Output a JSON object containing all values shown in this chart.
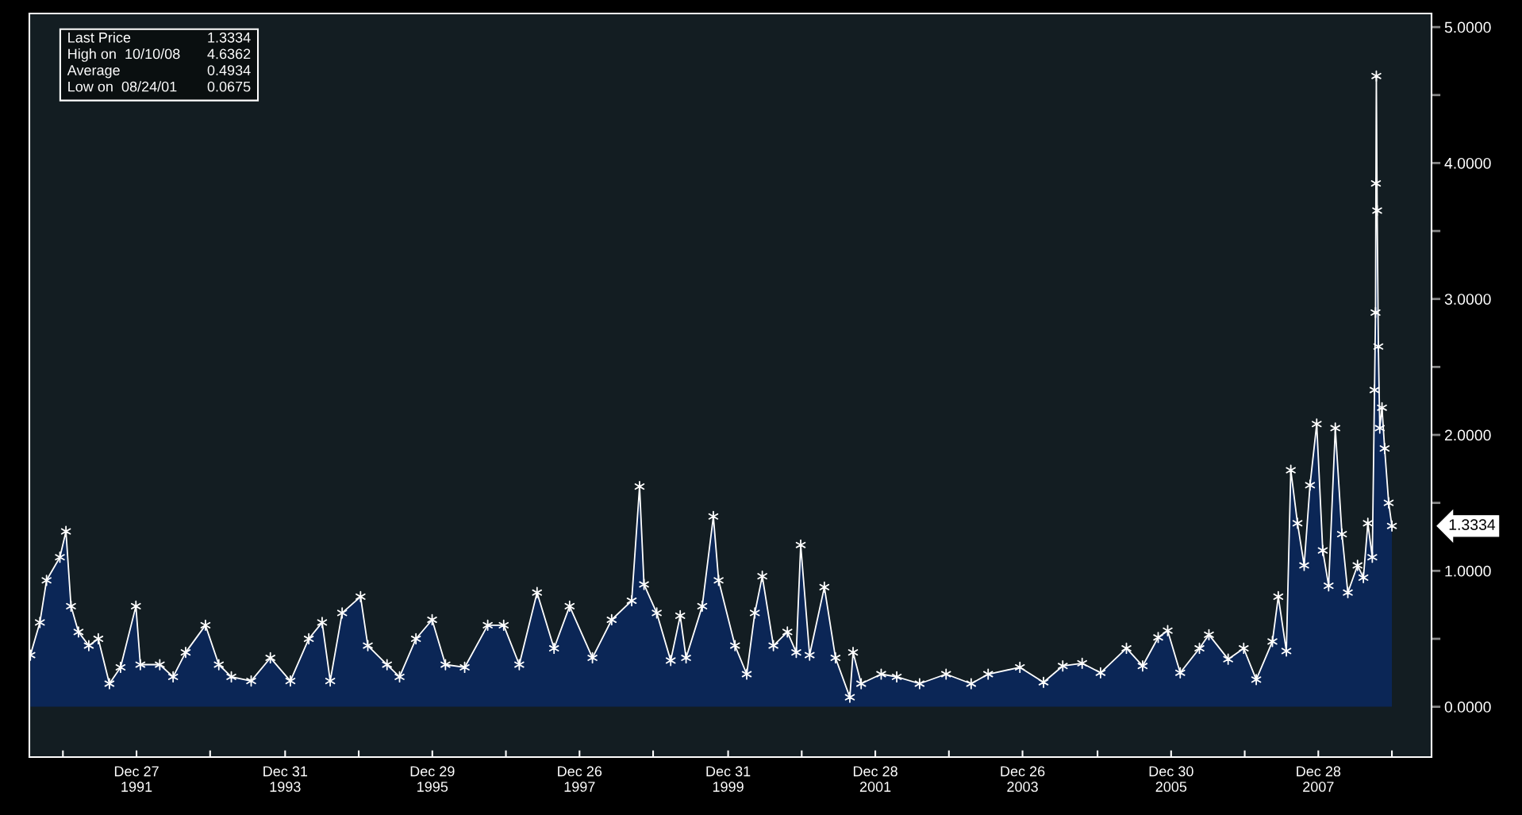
{
  "chart_data": {
    "type": "area",
    "x": [
      "1990-07-20",
      "1990-09-05",
      "1990-10-08",
      "1990-12-13",
      "1991-01-12",
      "1991-02-06",
      "1991-03-15",
      "1991-05-05",
      "1991-06-21",
      "1991-08-15",
      "1991-10-09",
      "1991-12-24",
      "1992-01-15",
      "1992-04-20",
      "1992-06-25",
      "1992-08-26",
      "1992-12-02",
      "1993-02-06",
      "1993-04-09",
      "1993-07-16",
      "1993-10-19",
      "1994-01-26",
      "1994-04-27",
      "1994-07-02",
      "1994-08-11",
      "1994-10-09",
      "1995-01-08",
      "1995-02-13",
      "1995-05-19",
      "1995-07-20",
      "1995-10-09",
      "1995-12-28",
      "1996-03-03",
      "1996-06-06",
      "1996-09-28",
      "1996-12-16",
      "1997-03-03",
      "1997-05-30",
      "1997-08-22",
      "1997-11-07",
      "1998-02-28",
      "1998-06-03",
      "1998-09-10",
      "1998-10-19",
      "1998-11-10",
      "1999-01-12",
      "1999-03-22",
      "1999-05-08",
      "1999-06-06",
      "1999-08-25",
      "1999-10-19",
      "1999-11-14",
      "2000-02-03",
      "2000-04-01",
      "2000-05-11",
      "2000-06-17",
      "2000-08-11",
      "2000-10-19",
      "2000-12-02",
      "2000-12-24",
      "2001-02-06",
      "2001-04-20",
      "2001-06-14",
      "2001-08-24",
      "2001-09-09",
      "2001-10-19",
      "2002-01-26",
      "2002-04-13",
      "2002-08-04",
      "2002-12-13",
      "2003-04-16",
      "2003-07-09",
      "2003-12-13",
      "2004-04-08",
      "2004-07-12",
      "2004-10-16",
      "2005-01-15",
      "2005-05-23",
      "2005-08-11",
      "2005-10-27",
      "2005-12-13",
      "2006-02-13",
      "2006-05-19",
      "2006-07-05",
      "2006-10-08",
      "2006-12-24",
      "2007-02-24",
      "2007-05-15",
      "2007-06-13",
      "2007-07-23",
      "2007-08-14",
      "2007-09-16",
      "2007-10-19",
      "2007-11-17",
      "2007-12-20",
      "2008-01-19",
      "2008-02-17",
      "2008-03-21",
      "2008-04-23",
      "2008-05-22",
      "2008-07-09",
      "2008-08-07",
      "2008-08-29",
      "2008-09-20",
      "2008-10-01",
      "2008-10-06",
      "2008-10-08",
      "2008-10-10",
      "2008-10-14",
      "2008-10-20",
      "2008-10-27",
      "2008-11-07",
      "2008-11-20",
      "2008-12-10",
      "2008-12-26"
    ],
    "series": [
      {
        "color": "#0b2656",
        "values": [
          0.38,
          0.62,
          0.93,
          1.1,
          1.29,
          0.74,
          0.55,
          0.45,
          0.5,
          0.17,
          0.29,
          0.74,
          0.31,
          0.31,
          0.22,
          0.4,
          0.6,
          0.31,
          0.22,
          0.19,
          0.36,
          0.19,
          0.5,
          0.62,
          0.19,
          0.69,
          0.81,
          0.45,
          0.31,
          0.22,
          0.5,
          0.64,
          0.31,
          0.29,
          0.6,
          0.6,
          0.31,
          0.84,
          0.43,
          0.74,
          0.36,
          0.64,
          0.78,
          1.62,
          0.9,
          0.69,
          0.34,
          0.67,
          0.36,
          0.74,
          1.4,
          0.93,
          0.45,
          0.24,
          0.69,
          0.96,
          0.45,
          0.55,
          0.4,
          1.19,
          0.38,
          0.88,
          0.36,
          0.07,
          0.4,
          0.17,
          0.24,
          0.22,
          0.17,
          0.24,
          0.17,
          0.24,
          0.29,
          0.18,
          0.3,
          0.32,
          0.25,
          0.43,
          0.3,
          0.51,
          0.56,
          0.25,
          0.43,
          0.53,
          0.35,
          0.43,
          0.2,
          0.48,
          0.81,
          0.41,
          1.74,
          1.35,
          1.04,
          1.63,
          2.08,
          1.15,
          0.89,
          2.05,
          1.27,
          0.84,
          1.04,
          0.95,
          1.35,
          1.1,
          2.33,
          2.9,
          3.85,
          4.64,
          3.65,
          2.65,
          2.05,
          2.2,
          1.9,
          1.5,
          1.33
        ]
      }
    ],
    "xlim": [
      "1990-07-15",
      "2009-07-10"
    ],
    "xticks": [
      {
        "value": "1990-12-28",
        "label": null
      },
      {
        "value": "1991-12-27",
        "label": "Dec 27\n1991"
      },
      {
        "value": "1992-12-25",
        "label": null
      },
      {
        "value": "1993-12-31",
        "label": "Dec 31\n1993"
      },
      {
        "value": "1994-12-30",
        "label": null
      },
      {
        "value": "1995-12-29",
        "label": "Dec 29\n1995"
      },
      {
        "value": "1996-12-27",
        "label": null
      },
      {
        "value": "1997-12-26",
        "label": "Dec 26\n1997"
      },
      {
        "value": "1998-12-25",
        "label": null
      },
      {
        "value": "1999-12-31",
        "label": "Dec 31\n1999"
      },
      {
        "value": "2000-12-29",
        "label": null
      },
      {
        "value": "2001-12-28",
        "label": "Dec 28\n2001"
      },
      {
        "value": "2002-12-27",
        "label": null
      },
      {
        "value": "2003-12-26",
        "label": "Dec 26\n2003"
      },
      {
        "value": "2004-12-31",
        "label": null
      },
      {
        "value": "2005-12-30",
        "label": "Dec 30\n2005"
      },
      {
        "value": "2006-12-29",
        "label": null
      },
      {
        "value": "2007-12-28",
        "label": "Dec 28\n2007"
      },
      {
        "value": "2008-12-26",
        "label": null
      }
    ],
    "ylim": [
      -0.37,
      5.1
    ],
    "yticks": [
      {
        "value": 0,
        "label": "0.0000"
      },
      {
        "value": 0.5,
        "label": null
      },
      {
        "value": 1,
        "label": "1.0000"
      },
      {
        "value": 1.5,
        "label": null
      },
      {
        "value": 2,
        "label": "2.0000"
      },
      {
        "value": 2.5,
        "label": null
      },
      {
        "value": 3,
        "label": "3.0000"
      },
      {
        "value": 3.5,
        "label": null
      },
      {
        "value": 4,
        "label": "4.0000"
      },
      {
        "value": 4.5,
        "label": null
      },
      {
        "value": 5,
        "label": "5.0000"
      }
    ],
    "marker": "cross",
    "line_style": "solid",
    "annotations": [
      "Last Price",
      "1.3334",
      "High on  10/10/08",
      "4.6362",
      "Average",
      "0.4934",
      "Low on  08/24/01",
      "0.0675",
      "1.3334"
    ]
  }
}
